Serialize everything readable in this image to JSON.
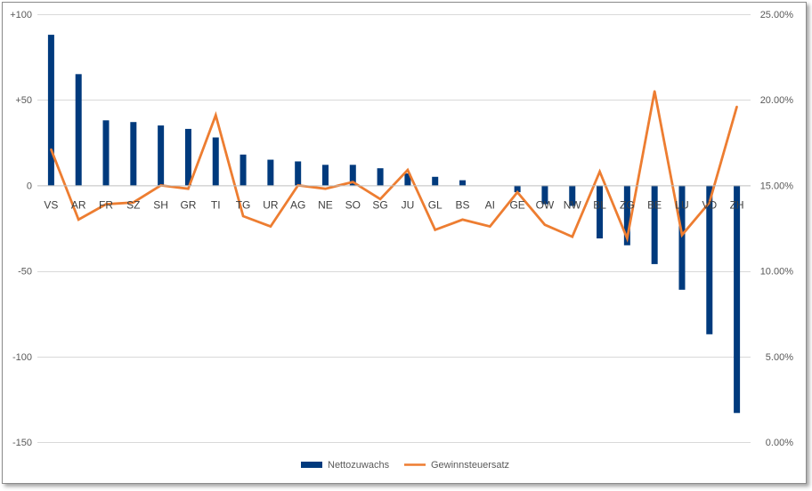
{
  "chart_data": {
    "type": "bar",
    "categories": [
      "VS",
      "AR",
      "FR",
      "SZ",
      "SH",
      "GR",
      "TI",
      "TG",
      "UR",
      "AG",
      "NE",
      "SO",
      "SG",
      "JU",
      "GL",
      "BS",
      "AI",
      "GE",
      "OW",
      "NW",
      "BL",
      "ZG",
      "BE",
      "LU",
      "VD",
      "ZH"
    ],
    "series": [
      {
        "name": "Nettozuwachs",
        "type": "bar",
        "axis": "left",
        "color": "#003A7D",
        "values": [
          88,
          65,
          38,
          37,
          35,
          33,
          28,
          18,
          15,
          14,
          12,
          12,
          10,
          7,
          5,
          3,
          0,
          -4,
          -11,
          -12,
          -31,
          -35,
          -46,
          -61,
          -87,
          -133
        ]
      },
      {
        "name": "Gewinnsteuersatz",
        "type": "line",
        "axis": "right",
        "color": "#ED7D31",
        "values": [
          0.171,
          0.13,
          0.139,
          0.14,
          0.15,
          0.148,
          0.191,
          0.132,
          0.126,
          0.15,
          0.148,
          0.152,
          0.142,
          0.159,
          0.124,
          0.13,
          0.126,
          0.146,
          0.127,
          0.12,
          0.158,
          0.119,
          0.205,
          0.121,
          0.14,
          0.196
        ]
      }
    ],
    "yaxis_left": {
      "min": -150,
      "max": 100,
      "step": 50,
      "tick_labels": [
        "+100",
        "+50",
        "0",
        "-50",
        "-100",
        "-150"
      ]
    },
    "yaxis_right": {
      "min": 0,
      "max": 0.25,
      "step": 0.05,
      "tick_labels": [
        "25.00%",
        "20.00%",
        "15.00%",
        "10.00%",
        "5.00%",
        "0.00%"
      ]
    },
    "grid": true,
    "legend": "bottom",
    "legend_labels": [
      "Nettozuwachs",
      "Gewinnsteuersatz"
    ]
  }
}
